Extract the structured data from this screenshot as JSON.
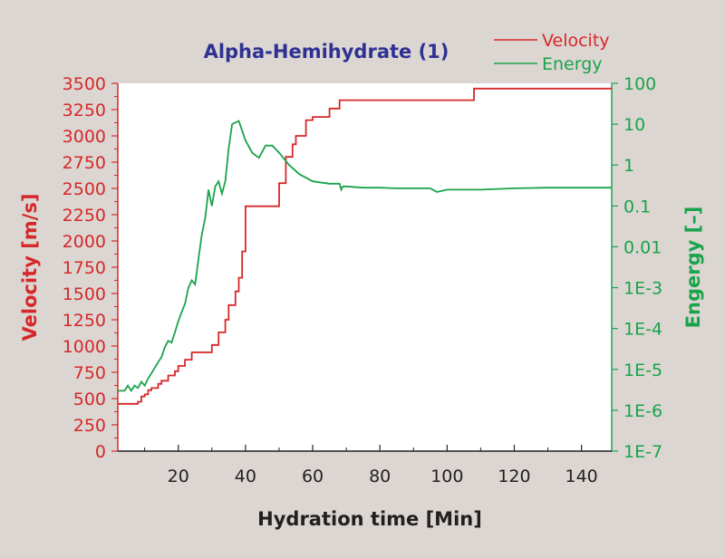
{
  "chart_data": {
    "type": "line",
    "title": "Alpha-Hemihydrate (1)",
    "xlabel": "Hydration time [Min]",
    "ylabel_left": "Velocity [m/s]",
    "ylabel_right": "Engergy [–]",
    "xlim": [
      2,
      149
    ],
    "ylim_left": [
      0,
      3500
    ],
    "ylim_right": [
      1e-07,
      100
    ],
    "right_axis_scale": "log",
    "grid": false,
    "legend_position": "top-right",
    "x_ticks": [
      "20",
      "40",
      "60",
      "80",
      "100",
      "120",
      "140"
    ],
    "y_left_ticks": [
      "0",
      "250",
      "500",
      "750",
      "1000",
      "1250",
      "1500",
      "1750",
      "2000",
      "2250",
      "2500",
      "2750",
      "3000",
      "3250",
      "3500"
    ],
    "y_right_ticks": [
      "1E-7",
      "1E-6",
      "1E-5",
      "1E-4",
      "1E-3",
      "0.01",
      "0.1",
      "1",
      "10",
      "100"
    ],
    "series": [
      {
        "name": "Velocity",
        "axis": "left",
        "color": "#d6282a",
        "x": [
          2,
          8,
          8,
          9,
          9,
          10,
          10,
          11,
          11,
          12,
          12,
          14,
          14,
          15,
          15,
          17,
          17,
          19,
          19,
          20,
          20,
          22,
          22,
          24,
          24,
          30,
          30,
          32,
          32,
          34,
          34,
          35,
          35,
          37,
          37,
          38,
          38,
          39,
          39,
          40,
          40,
          50,
          50,
          52,
          52,
          54,
          54,
          55,
          55,
          58,
          58,
          60,
          60,
          65,
          65,
          68,
          68,
          70,
          70,
          108,
          108,
          149
        ],
        "y": [
          450,
          450,
          470,
          470,
          520,
          520,
          540,
          540,
          580,
          580,
          600,
          600,
          640,
          640,
          670,
          670,
          720,
          720,
          760,
          760,
          810,
          810,
          870,
          870,
          940,
          940,
          1010,
          1010,
          1130,
          1130,
          1250,
          1250,
          1390,
          1390,
          1520,
          1520,
          1650,
          1650,
          1900,
          1900,
          2330,
          2330,
          2550,
          2550,
          2800,
          2800,
          2920,
          2920,
          3000,
          3000,
          3150,
          3150,
          3180,
          3180,
          3260,
          3260,
          3340,
          3340,
          3340,
          3340,
          3450,
          3450
        ]
      },
      {
        "name": "Energy",
        "axis": "right",
        "color": "#1aa34a",
        "x": [
          2,
          4,
          5,
          6,
          7,
          8,
          9,
          10,
          11,
          12,
          13,
          14,
          15,
          16,
          17,
          18,
          19,
          20,
          21,
          22,
          23,
          24,
          25,
          26,
          27,
          28,
          29,
          30,
          31,
          32,
          33,
          34,
          35,
          36,
          38,
          40,
          42,
          44,
          46,
          48,
          50,
          53,
          56,
          60,
          65,
          68,
          68.5,
          69,
          70,
          75,
          80,
          85,
          90,
          95,
          97,
          100,
          110,
          120,
          130,
          140,
          149
        ],
        "y": [
          3e-06,
          3e-06,
          4e-06,
          3e-06,
          4e-06,
          3.5e-06,
          5e-06,
          4e-06,
          6e-06,
          8e-06,
          1.1e-05,
          1.5e-05,
          2e-05,
          3.5e-05,
          5e-05,
          4.5e-05,
          8e-05,
          0.00015,
          0.00025,
          0.0004,
          0.001,
          0.0015,
          0.0012,
          0.005,
          0.02,
          0.05,
          0.25,
          0.1,
          0.3,
          0.4,
          0.2,
          0.4,
          2.5,
          10,
          12,
          4,
          2,
          1.5,
          3,
          3,
          2,
          1,
          0.6,
          0.4,
          0.35,
          0.35,
          0.25,
          0.3,
          0.3,
          0.28,
          0.28,
          0.27,
          0.27,
          0.27,
          0.22,
          0.25,
          0.25,
          0.27,
          0.28,
          0.28,
          0.28
        ]
      }
    ]
  }
}
